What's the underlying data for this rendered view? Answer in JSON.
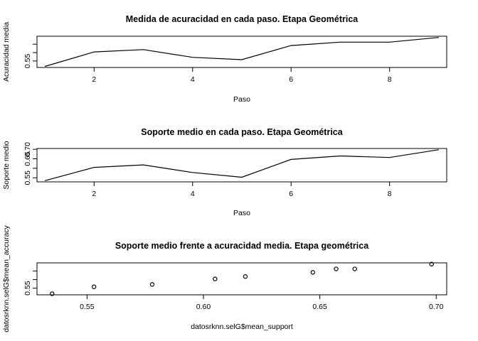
{
  "chart_data": [
    {
      "type": "line",
      "title": "Medida de acuracidad en cada paso. Etapa Geométrica",
      "xlabel": "Paso",
      "ylabel": "Acuracidad media",
      "x": [
        1,
        2,
        3,
        4,
        5,
        6,
        7,
        8,
        9
      ],
      "series": [
        {
          "values": [
            0.534,
            0.577,
            0.584,
            0.561,
            0.554,
            0.596,
            0.606,
            0.606,
            0.62
          ]
        }
      ],
      "xlim": [
        0.84,
        9.16
      ],
      "ylim": [
        0.5308,
        0.6236
      ],
      "xticks": [
        2,
        4,
        6,
        8
      ],
      "yticks": [
        0.55
      ],
      "ytick_marks": [
        0.55,
        0.575,
        0.6
      ]
    },
    {
      "type": "line",
      "title": "Soporte medio en cada paso. Etapa Geométrica",
      "xlabel": "Paso",
      "ylabel": "Soporte medio",
      "x": [
        1,
        2,
        3,
        4,
        5,
        6,
        7,
        8,
        9
      ],
      "series": [
        {
          "values": [
            0.535,
            0.605,
            0.618,
            0.578,
            0.553,
            0.647,
            0.665,
            0.657,
            0.698
          ]
        }
      ],
      "xlim": [
        0.84,
        9.16
      ],
      "ylim": [
        0.5285,
        0.7045
      ],
      "xticks": [
        2,
        4,
        6,
        8
      ],
      "yticks": [
        0.55,
        0.65,
        0.7
      ],
      "ytick_marks": [
        0.55,
        0.6,
        0.65,
        0.7
      ]
    },
    {
      "type": "scatter",
      "title": "Soporte medio frente a acuracidad media. Etapa geométrica",
      "xlabel": "datosrknn.selG$mean_support",
      "ylabel": "datosrknn.selG$mean_accuracy",
      "x": [
        0.535,
        0.553,
        0.578,
        0.605,
        0.618,
        0.647,
        0.657,
        0.665,
        0.698
      ],
      "series": [
        {
          "values": [
            0.534,
            0.554,
            0.561,
            0.577,
            0.584,
            0.596,
            0.606,
            0.606,
            0.62
          ]
        }
      ],
      "xlim": [
        0.5285,
        0.7045
      ],
      "ylim": [
        0.5308,
        0.6236
      ],
      "xticks": [
        0.55,
        0.6,
        0.65,
        0.7
      ],
      "yticks": [
        0.55
      ],
      "ytick_marks": [
        0.55,
        0.575,
        0.6
      ]
    }
  ]
}
